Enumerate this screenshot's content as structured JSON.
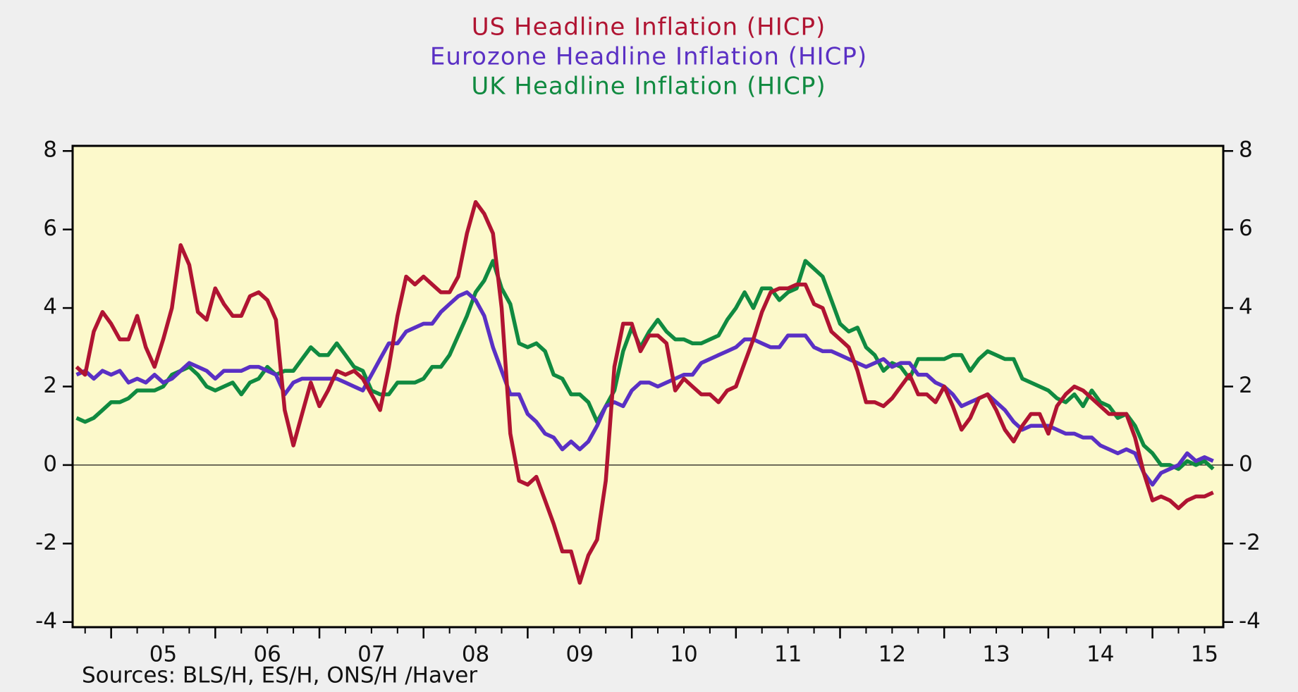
{
  "chart_data": {
    "type": "line",
    "titles": [
      {
        "text": "US Headline Inflation (HICP)",
        "color": "#b01432"
      },
      {
        "text": "Eurozone Headline Inflation (HICP)",
        "color": "#5a30c4"
      },
      {
        "text": "UK Headline Inflation (HICP)",
        "color": "#108a40"
      }
    ],
    "source": "Sources:  BLS/H, ES/H, ONS/H /Haver",
    "x": [
      4.667,
      4.75,
      4.833,
      4.917,
      5,
      5.083,
      5.167,
      5.25,
      5.333,
      5.417,
      5.5,
      5.583,
      5.667,
      5.75,
      5.833,
      5.917,
      6,
      6.083,
      6.167,
      6.25,
      6.333,
      6.417,
      6.5,
      6.583,
      6.667,
      6.75,
      6.833,
      6.917,
      7,
      7.083,
      7.167,
      7.25,
      7.333,
      7.417,
      7.5,
      7.583,
      7.667,
      7.75,
      7.833,
      7.917,
      8,
      8.083,
      8.167,
      8.25,
      8.333,
      8.417,
      8.5,
      8.583,
      8.667,
      8.75,
      8.833,
      8.917,
      9,
      9.083,
      9.167,
      9.25,
      9.333,
      9.417,
      9.5,
      9.583,
      9.667,
      9.75,
      9.833,
      9.917,
      10,
      10.083,
      10.167,
      10.25,
      10.333,
      10.417,
      10.5,
      10.583,
      10.667,
      10.75,
      10.833,
      10.917,
      11,
      11.083,
      11.167,
      11.25,
      11.333,
      11.417,
      11.5,
      11.583,
      11.667,
      11.75,
      11.833,
      11.917,
      12,
      12.083,
      12.167,
      12.25,
      12.333,
      12.417,
      12.5,
      12.583,
      12.667,
      12.75,
      12.833,
      12.917,
      13,
      13.083,
      13.167,
      13.25,
      13.333,
      13.417,
      13.5,
      13.583,
      13.667,
      13.75,
      13.833,
      13.917,
      14,
      14.083,
      14.167,
      14.25,
      14.333,
      14.417,
      14.5,
      14.583,
      14.667,
      14.75,
      14.833,
      14.917,
      15,
      15.083,
      15.167,
      15.25,
      15.333,
      15.417,
      15.5,
      15.583
    ],
    "series": [
      {
        "name": "US",
        "color": "#b01432",
        "values": [
          2.5,
          2.3,
          3.4,
          3.9,
          3.6,
          3.2,
          3.2,
          3.8,
          3.0,
          2.5,
          3.2,
          4.0,
          5.6,
          5.1,
          3.9,
          3.7,
          4.5,
          4.1,
          3.8,
          3.8,
          4.3,
          4.4,
          4.2,
          3.7,
          1.4,
          0.5,
          1.3,
          2.1,
          1.5,
          1.9,
          2.4,
          2.3,
          2.4,
          2.2,
          1.8,
          1.4,
          2.5,
          3.8,
          4.8,
          4.6,
          4.8,
          4.6,
          4.4,
          4.4,
          4.8,
          5.9,
          6.7,
          6.4,
          5.9,
          4.0,
          0.8,
          -0.4,
          -0.5,
          -0.3,
          -0.9,
          -1.5,
          -2.2,
          -2.2,
          -3.0,
          -2.3,
          -1.9,
          -0.4,
          2.5,
          3.6,
          3.6,
          2.9,
          3.3,
          3.3,
          3.1,
          1.9,
          2.2,
          2.0,
          1.8,
          1.8,
          1.6,
          1.9,
          2.0,
          2.6,
          3.2,
          3.9,
          4.4,
          4.5,
          4.5,
          4.6,
          4.6,
          4.1,
          4.0,
          3.4,
          3.2,
          3.0,
          2.4,
          1.6,
          1.6,
          1.5,
          1.7,
          2.0,
          2.3,
          1.8,
          1.8,
          1.6,
          2.0,
          1.5,
          0.9,
          1.2,
          1.7,
          1.8,
          1.4,
          0.9,
          0.6,
          1.0,
          1.3,
          1.3,
          0.8,
          1.5,
          1.8,
          2.0,
          1.9,
          1.7,
          1.5,
          1.3,
          1.3,
          1.3,
          0.7,
          -0.2,
          -0.9,
          -0.8,
          -0.9,
          -1.1,
          -0.9,
          -0.8,
          -0.8,
          -0.7
        ]
      },
      {
        "name": "Eurozone",
        "color": "#5a30c4",
        "values": [
          2.3,
          2.4,
          2.2,
          2.4,
          2.3,
          2.4,
          2.1,
          2.2,
          2.1,
          2.3,
          2.1,
          2.2,
          2.4,
          2.6,
          2.5,
          2.4,
          2.2,
          2.4,
          2.4,
          2.4,
          2.5,
          2.5,
          2.4,
          2.3,
          1.8,
          2.1,
          2.2,
          2.2,
          2.2,
          2.2,
          2.2,
          2.1,
          2.0,
          1.9,
          2.3,
          2.7,
          3.1,
          3.1,
          3.4,
          3.5,
          3.6,
          3.6,
          3.9,
          4.1,
          4.3,
          4.4,
          4.2,
          3.8,
          3.0,
          2.4,
          1.8,
          1.8,
          1.3,
          1.1,
          0.8,
          0.7,
          0.4,
          0.6,
          0.4,
          0.6,
          1.0,
          1.5,
          1.6,
          1.5,
          1.9,
          2.1,
          2.1,
          2.0,
          2.1,
          2.2,
          2.3,
          2.3,
          2.6,
          2.7,
          2.8,
          2.9,
          3.0,
          3.2,
          3.2,
          3.1,
          3.0,
          3.0,
          3.3,
          3.3,
          3.3,
          3.0,
          2.9,
          2.9,
          2.8,
          2.7,
          2.6,
          2.5,
          2.6,
          2.7,
          2.5,
          2.6,
          2.6,
          2.3,
          2.3,
          2.1,
          2.0,
          1.8,
          1.5,
          1.6,
          1.7,
          1.8,
          1.6,
          1.4,
          1.1,
          0.9,
          1.0,
          1.0,
          1.0,
          0.9,
          0.8,
          0.8,
          0.7,
          0.7,
          0.5,
          0.4,
          0.3,
          0.4,
          0.3,
          -0.2,
          -0.5,
          -0.2,
          -0.1,
          0.0,
          0.3,
          0.1,
          0.2,
          0.1
        ]
      },
      {
        "name": "UK",
        "color": "#108a40",
        "values": [
          1.2,
          1.1,
          1.2,
          1.4,
          1.6,
          1.6,
          1.7,
          1.9,
          1.9,
          1.9,
          2.0,
          2.3,
          2.4,
          2.5,
          2.3,
          2.0,
          1.9,
          2.0,
          2.1,
          1.8,
          2.1,
          2.2,
          2.5,
          2.3,
          2.4,
          2.4,
          2.7,
          3.0,
          2.8,
          2.8,
          3.1,
          2.8,
          2.5,
          2.4,
          1.9,
          1.8,
          1.8,
          2.1,
          2.1,
          2.1,
          2.2,
          2.5,
          2.5,
          2.8,
          3.3,
          3.8,
          4.4,
          4.7,
          5.2,
          4.5,
          4.1,
          3.1,
          3.0,
          3.1,
          2.9,
          2.3,
          2.2,
          1.8,
          1.8,
          1.6,
          1.1,
          1.5,
          1.9,
          2.9,
          3.5,
          3.0,
          3.4,
          3.7,
          3.4,
          3.2,
          3.2,
          3.1,
          3.1,
          3.2,
          3.3,
          3.7,
          4.0,
          4.4,
          4.0,
          4.5,
          4.5,
          4.2,
          4.4,
          4.5,
          5.2,
          5.0,
          4.8,
          4.2,
          3.6,
          3.4,
          3.5,
          3.0,
          2.8,
          2.4,
          2.6,
          2.5,
          2.2,
          2.7,
          2.7,
          2.7,
          2.7,
          2.8,
          2.8,
          2.4,
          2.7,
          2.9,
          2.8,
          2.7,
          2.7,
          2.2,
          2.1,
          2.0,
          1.9,
          1.7,
          1.6,
          1.8,
          1.5,
          1.9,
          1.6,
          1.5,
          1.2,
          1.3,
          1.0,
          0.5,
          0.3,
          0.0,
          0.0,
          -0.1,
          0.1,
          0.0,
          0.1,
          -0.1
        ]
      }
    ],
    "xlim": [
      4.63,
      15.68
    ],
    "xticks": [
      {
        "value": 5,
        "label": "05"
      },
      {
        "value": 6,
        "label": "06"
      },
      {
        "value": 7,
        "label": "07"
      },
      {
        "value": 8,
        "label": "08"
      },
      {
        "value": 9,
        "label": "09"
      },
      {
        "value": 10,
        "label": "10"
      },
      {
        "value": 11,
        "label": "11"
      },
      {
        "value": 12,
        "label": "12"
      },
      {
        "value": 13,
        "label": "13"
      },
      {
        "value": 14,
        "label": "14"
      },
      {
        "value": 15,
        "label": "15"
      }
    ],
    "ylim": [
      -4.13,
      8.13
    ],
    "yticks": [
      -4,
      -2,
      0,
      2,
      4,
      6,
      8
    ],
    "zero_line": true,
    "plot_background": "#fcf9cb"
  }
}
